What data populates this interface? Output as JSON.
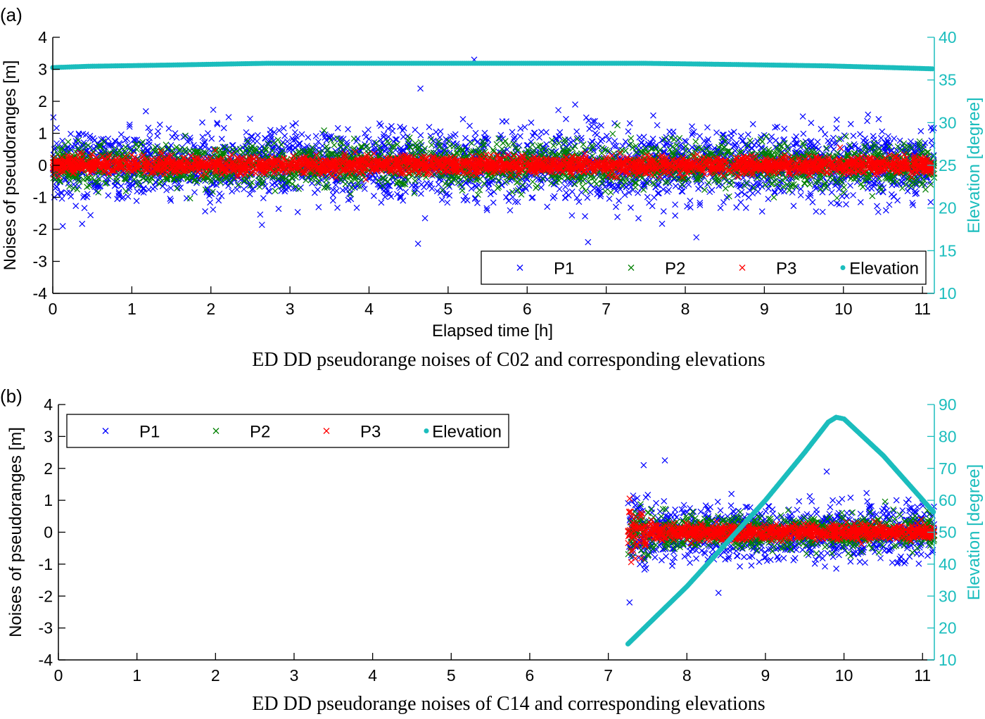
{
  "chart_data": [
    {
      "type": "scatter",
      "panel_label": "(a)",
      "caption": "ED DD pseudorange noises of C02 and corresponding elevations",
      "xlabel": "Elapsed time [h]",
      "ylabel": "Noises of pseudoranges [m]",
      "y2label": "Elevation [degree]",
      "xlim": [
        0,
        11.15
      ],
      "ylim": [
        -4,
        4
      ],
      "y2lim": [
        10,
        40
      ],
      "xticks": [
        "0",
        "1",
        "2",
        "3",
        "4",
        "5",
        "6",
        "7",
        "8",
        "9",
        "10",
        "11"
      ],
      "yticks": [
        "-4",
        "-3",
        "-2",
        "-1",
        "0",
        "1",
        "2",
        "3",
        "4"
      ],
      "y2ticks": [
        "10",
        "15",
        "20",
        "25",
        "30",
        "35",
        "40"
      ],
      "grid": false,
      "legend": {
        "placement": "bottom-right",
        "entries": [
          "P1",
          "P2",
          "P3",
          "Elevation"
        ]
      },
      "series": [
        {
          "name": "P1",
          "color": "#0000ff",
          "marker": "x",
          "time_range": [
            0,
            11.15
          ],
          "noise_std": 0.55,
          "outliers": [
            [
              5.33,
              3.3
            ],
            [
              4.65,
              2.4
            ],
            [
              4.62,
              -2.45
            ],
            [
              6.77,
              -2.4
            ],
            [
              8.14,
              -2.25
            ]
          ]
        },
        {
          "name": "P2",
          "color": "#007f00",
          "marker": "x",
          "time_range": [
            0,
            11.15
          ],
          "noise_std": 0.33
        },
        {
          "name": "P3",
          "color": "#ff0000",
          "marker": "x",
          "time_range": [
            0,
            11.15
          ],
          "noise_std": 0.13
        },
        {
          "name": "Elevation",
          "color": "#1bbdbd",
          "marker": "dot",
          "axis": "right",
          "points": [
            [
              0,
              36.45
            ],
            [
              0.45,
              36.6
            ],
            [
              1.5,
              36.75
            ],
            [
              2.7,
              36.95
            ],
            [
              7.5,
              36.95
            ],
            [
              8.7,
              36.8
            ],
            [
              9.8,
              36.65
            ],
            [
              10.6,
              36.45
            ],
            [
              11.15,
              36.3
            ]
          ]
        }
      ]
    },
    {
      "type": "scatter",
      "panel_label": "(b)",
      "caption": "ED DD pseudorange noises of C14 and corresponding elevations",
      "ylabel": "Noises of pseudoranges [m]",
      "y2label": "Elevation [degree]",
      "xlim": [
        0,
        11.15
      ],
      "ylim": [
        -4,
        4
      ],
      "y2lim": [
        10,
        90
      ],
      "xticks": [
        "0",
        "1",
        "2",
        "3",
        "4",
        "5",
        "6",
        "7",
        "8",
        "9",
        "10",
        "11"
      ],
      "yticks": [
        "-4",
        "-3",
        "-2",
        "-1",
        "0",
        "1",
        "2",
        "3",
        "4"
      ],
      "y2ticks": [
        "10",
        "20",
        "30",
        "40",
        "50",
        "60",
        "70",
        "80",
        "90"
      ],
      "grid": false,
      "legend": {
        "placement": "top-left",
        "entries": [
          "P1",
          "P2",
          "P3",
          "Elevation"
        ]
      },
      "series": [
        {
          "name": "P1",
          "color": "#0000ff",
          "marker": "x",
          "time_range": [
            7.25,
            11.15
          ],
          "noise_std": 0.42,
          "outliers": [
            [
              7.27,
              -2.2
            ],
            [
              7.72,
              2.25
            ],
            [
              9.78,
              1.9
            ],
            [
              7.45,
              2.1
            ]
          ]
        },
        {
          "name": "P2",
          "color": "#007f00",
          "marker": "x",
          "time_range": [
            7.25,
            11.15
          ],
          "noise_std": 0.25
        },
        {
          "name": "P3",
          "color": "#ff0000",
          "marker": "x",
          "time_range": [
            7.25,
            11.15
          ],
          "noise_std": 0.12,
          "initial_noise_std": 0.45
        },
        {
          "name": "Elevation",
          "color": "#1bbdbd",
          "marker": "dot",
          "axis": "right",
          "points": [
            [
              7.25,
              15
            ],
            [
              8.0,
              33
            ],
            [
              9.0,
              60
            ],
            [
              9.5,
              75
            ],
            [
              9.8,
              84.5
            ],
            [
              9.9,
              86
            ],
            [
              10.0,
              85.5
            ],
            [
              10.5,
              74
            ],
            [
              11.15,
              56
            ]
          ]
        }
      ]
    }
  ]
}
